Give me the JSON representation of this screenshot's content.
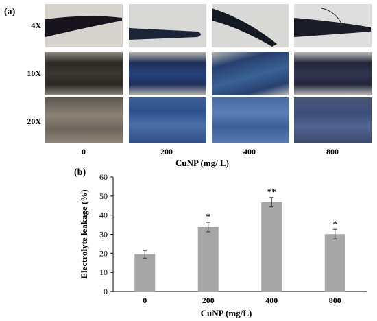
{
  "panel_a": {
    "label": "(a)",
    "row_labels": [
      "4X",
      "10X",
      "20X"
    ],
    "column_labels": [
      "0",
      "200",
      "400",
      "800"
    ],
    "xlabel": "CuNP (mg/ L)"
  },
  "panel_b": {
    "label": "(b)"
  },
  "chart_data": {
    "type": "bar",
    "categories": [
      "0",
      "200",
      "400",
      "800"
    ],
    "values": [
      19.5,
      33.8,
      46.8,
      30.1
    ],
    "errors": [
      2.0,
      2.5,
      2.5,
      2.5
    ],
    "significance": [
      "",
      "*",
      "**",
      "*"
    ],
    "xlabel": "CuNP (mg/L)",
    "ylabel": "Electrolyte leakage (%)",
    "ylim": [
      0,
      60
    ],
    "yticks": [
      0,
      10,
      20,
      30,
      40,
      50,
      60
    ],
    "grid": false,
    "colors": {
      "bar": "#a6a6a6",
      "axis": "#000000"
    }
  }
}
